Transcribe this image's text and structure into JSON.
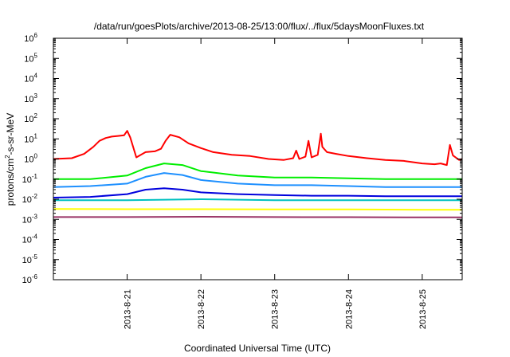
{
  "chart_data": {
    "type": "line",
    "title": "/data/run/goesPlots/archive/2013-08-25/13:00/flux/../flux/5daysMoonFluxes.txt",
    "xlabel": "Coordinated Universal Time (UTC)",
    "ylabel": {
      "prefix": "protons/cm",
      "sup": "2",
      "suffix": "-s-sr-MeV"
    },
    "yscale": "log",
    "ylim": [
      1e-06,
      1000000.0
    ],
    "xlim": [
      "2013-08-20 00:00",
      "2013-08-25 13:00"
    ],
    "grid": false,
    "y_ticks": [
      {
        "base": "10",
        "exp": "-6",
        "value": 1e-06
      },
      {
        "base": "10",
        "exp": "-5",
        "value": 1e-05
      },
      {
        "base": "10",
        "exp": "-4",
        "value": 0.0001
      },
      {
        "base": "10",
        "exp": "-3",
        "value": 0.001
      },
      {
        "base": "10",
        "exp": "-2",
        "value": 0.01
      },
      {
        "base": "10",
        "exp": "-1",
        "value": 0.1
      },
      {
        "base": "10",
        "exp": "0",
        "value": 1
      },
      {
        "base": "10",
        "exp": "1",
        "value": 10
      },
      {
        "base": "10",
        "exp": "2",
        "value": 100
      },
      {
        "base": "10",
        "exp": "3",
        "value": 1000
      },
      {
        "base": "10",
        "exp": "4",
        "value": 10000
      },
      {
        "base": "10",
        "exp": "5",
        "value": 100000
      },
      {
        "base": "10",
        "exp": "6",
        "value": 1000000
      }
    ],
    "x_ticks": [
      {
        "label": "2013-8-21",
        "value": "2013-08-21 00:00"
      },
      {
        "label": "2013-8-22",
        "value": "2013-08-22 00:00"
      },
      {
        "label": "2013-8-23",
        "value": "2013-08-23 00:00"
      },
      {
        "label": "2013-8-24",
        "value": "2013-08-24 00:00"
      },
      {
        "label": "2013-8-25",
        "value": "2013-08-25 00:00"
      }
    ],
    "series": [
      {
        "color": "#ff0000",
        "x": [
          "2013-08-20 00:00",
          "2013-08-20 06:00",
          "2013-08-20 10:00",
          "2013-08-20 13:00",
          "2013-08-20 15:00",
          "2013-08-20 17:00",
          "2013-08-20 19:00",
          "2013-08-20 21:00",
          "2013-08-20 23:00",
          "2013-08-21 00:00",
          "2013-08-21 01:00",
          "2013-08-21 03:00",
          "2013-08-21 06:00",
          "2013-08-21 09:00",
          "2013-08-21 11:00",
          "2013-08-21 12:30",
          "2013-08-21 14:00",
          "2013-08-21 17:00",
          "2013-08-21 20:00",
          "2013-08-22 00:00",
          "2013-08-22 04:00",
          "2013-08-22 10:00",
          "2013-08-22 16:00",
          "2013-08-22 22:00",
          "2013-08-23 03:00",
          "2013-08-23 06:00",
          "2013-08-23 07:00",
          "2013-08-23 08:00",
          "2013-08-23 10:00",
          "2013-08-23 11:00",
          "2013-08-23 12:00",
          "2013-08-23 14:00",
          "2013-08-23 15:00",
          "2013-08-23 15:30",
          "2013-08-23 17:00",
          "2013-08-23 20:00",
          "2013-08-24 00:00",
          "2013-08-24 06:00",
          "2013-08-24 12:00",
          "2013-08-24 18:00",
          "2013-08-25 00:00",
          "2013-08-25 04:00",
          "2013-08-25 06:00",
          "2013-08-25 08:00",
          "2013-08-25 09:00",
          "2013-08-25 10:00",
          "2013-08-25 12:00",
          "2013-08-25 13:00"
        ],
        "values": [
          1.0,
          1.1,
          1.8,
          4,
          8,
          11,
          13,
          14,
          15,
          25,
          12,
          1.2,
          2.2,
          2.4,
          3.2,
          8,
          16,
          12,
          6,
          3.5,
          2.2,
          1.6,
          1.4,
          1.0,
          0.9,
          1.1,
          2.6,
          1.0,
          1.3,
          8,
          1.2,
          1.6,
          18,
          4,
          2.2,
          1.8,
          1.4,
          1.1,
          0.9,
          0.8,
          0.6,
          0.55,
          0.6,
          0.5,
          5,
          1.5,
          0.9,
          1.0
        ]
      },
      {
        "color": "#00ee00",
        "x": [
          "2013-08-20 00:00",
          "2013-08-20 12:00",
          "2013-08-21 00:00",
          "2013-08-21 06:00",
          "2013-08-21 12:00",
          "2013-08-21 18:00",
          "2013-08-22 00:00",
          "2013-08-22 12:00",
          "2013-08-23 00:00",
          "2013-08-23 12:00",
          "2013-08-24 00:00",
          "2013-08-24 12:00",
          "2013-08-25 00:00",
          "2013-08-25 13:00"
        ],
        "values": [
          0.1,
          0.1,
          0.15,
          0.35,
          0.6,
          0.5,
          0.25,
          0.15,
          0.12,
          0.12,
          0.11,
          0.1,
          0.1,
          0.1
        ]
      },
      {
        "color": "#1e90ff",
        "x": [
          "2013-08-20 00:00",
          "2013-08-20 12:00",
          "2013-08-21 00:00",
          "2013-08-21 06:00",
          "2013-08-21 12:00",
          "2013-08-21 18:00",
          "2013-08-22 00:00",
          "2013-08-22 12:00",
          "2013-08-23 00:00",
          "2013-08-23 12:00",
          "2013-08-24 00:00",
          "2013-08-24 12:00",
          "2013-08-25 00:00",
          "2013-08-25 13:00"
        ],
        "values": [
          0.04,
          0.045,
          0.06,
          0.13,
          0.2,
          0.16,
          0.09,
          0.06,
          0.05,
          0.05,
          0.045,
          0.04,
          0.04,
          0.04
        ]
      },
      {
        "color": "#0000dd",
        "x": [
          "2013-08-20 00:00",
          "2013-08-20 12:00",
          "2013-08-21 00:00",
          "2013-08-21 06:00",
          "2013-08-21 12:00",
          "2013-08-21 18:00",
          "2013-08-22 00:00",
          "2013-08-22 12:00",
          "2013-08-23 00:00",
          "2013-08-23 12:00",
          "2013-08-24 00:00",
          "2013-08-24 12:00",
          "2013-08-25 00:00",
          "2013-08-25 13:00"
        ],
        "values": [
          0.012,
          0.013,
          0.018,
          0.03,
          0.035,
          0.03,
          0.022,
          0.018,
          0.016,
          0.015,
          0.015,
          0.014,
          0.014,
          0.014
        ]
      },
      {
        "color": "#00c0c0",
        "x": [
          "2013-08-20 00:00",
          "2013-08-21 00:00",
          "2013-08-22 00:00",
          "2013-08-23 00:00",
          "2013-08-24 00:00",
          "2013-08-25 00:00",
          "2013-08-25 13:00"
        ],
        "values": [
          0.009,
          0.009,
          0.01,
          0.009,
          0.009,
          0.009,
          0.009
        ]
      },
      {
        "color": "#ffff00",
        "x": [
          "2013-08-20 00:00",
          "2013-08-21 00:00",
          "2013-08-22 00:00",
          "2013-08-23 00:00",
          "2013-08-24 00:00",
          "2013-08-25 00:00",
          "2013-08-25 13:00"
        ],
        "values": [
          0.0033,
          0.0032,
          0.0032,
          0.0031,
          0.0031,
          0.003,
          0.003
        ]
      },
      {
        "color": "#993366",
        "x": [
          "2013-08-20 00:00",
          "2013-08-21 00:00",
          "2013-08-22 00:00",
          "2013-08-23 00:00",
          "2013-08-24 00:00",
          "2013-08-25 00:00",
          "2013-08-25 13:00"
        ],
        "values": [
          0.0013,
          0.0013,
          0.00135,
          0.0013,
          0.00128,
          0.00125,
          0.00125
        ]
      }
    ]
  }
}
